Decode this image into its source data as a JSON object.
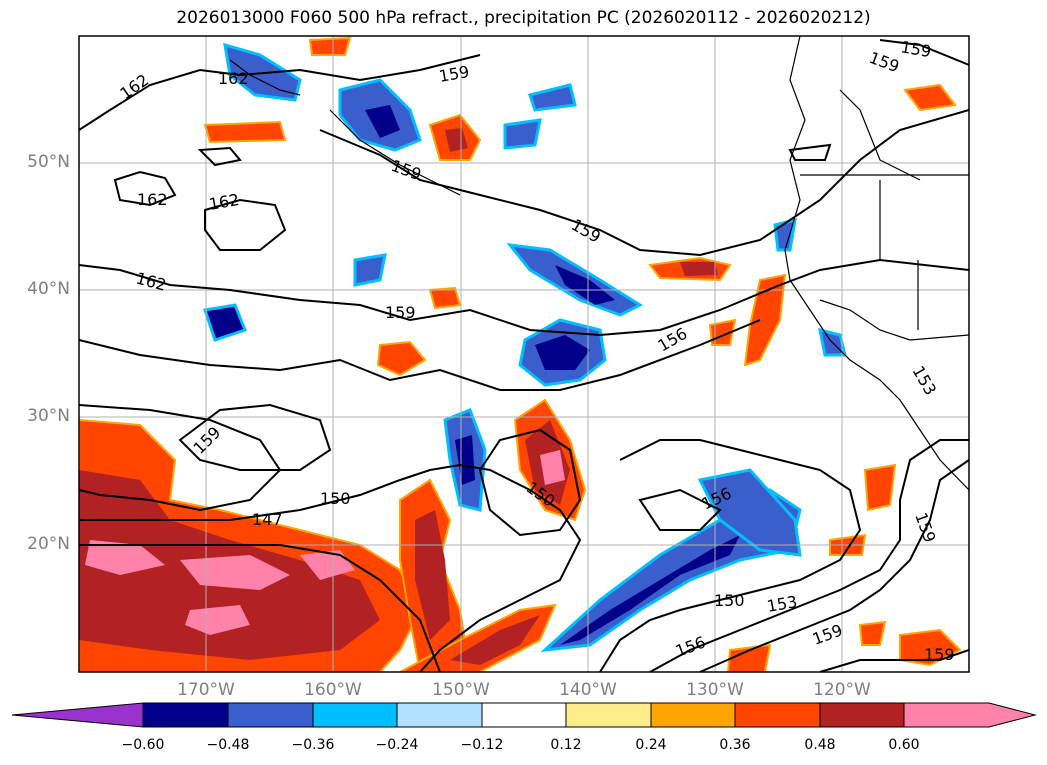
{
  "title": "2026013000 F060 500 hPa refract., precipitation PC (2026020112 - 2026020212)",
  "lat_labels": [
    "50°N",
    "40°N",
    "30°N",
    "20°N"
  ],
  "lon_labels": [
    "170°W",
    "160°W",
    "150°W",
    "140°W",
    "130°W",
    "120°W"
  ],
  "colorbar": {
    "ticks": [
      "−0.60",
      "−0.48",
      "−0.36",
      "−0.24",
      "−0.12",
      "0.12",
      "0.24",
      "0.36",
      "0.48",
      "0.60"
    ],
    "colors": [
      "#9a32cd",
      "#00008b",
      "#3a5fcd",
      "#00bfff",
      "#b0e2ff",
      "#ffffff",
      "#ffec8b",
      "#ffa500",
      "#ff4500",
      "#b22222",
      "#ff82ab"
    ]
  },
  "contour_labels": [
    "162",
    "162",
    "162",
    "162",
    "162",
    "159",
    "159",
    "159",
    "159",
    "159",
    "159",
    "159",
    "159",
    "156",
    "156",
    "156",
    "153",
    "153",
    "150",
    "150",
    "150",
    "147",
    "159",
    "159"
  ],
  "colors": {
    "grid": "#b0b0b0",
    "contour": "#000000",
    "coast": "#000000"
  }
}
